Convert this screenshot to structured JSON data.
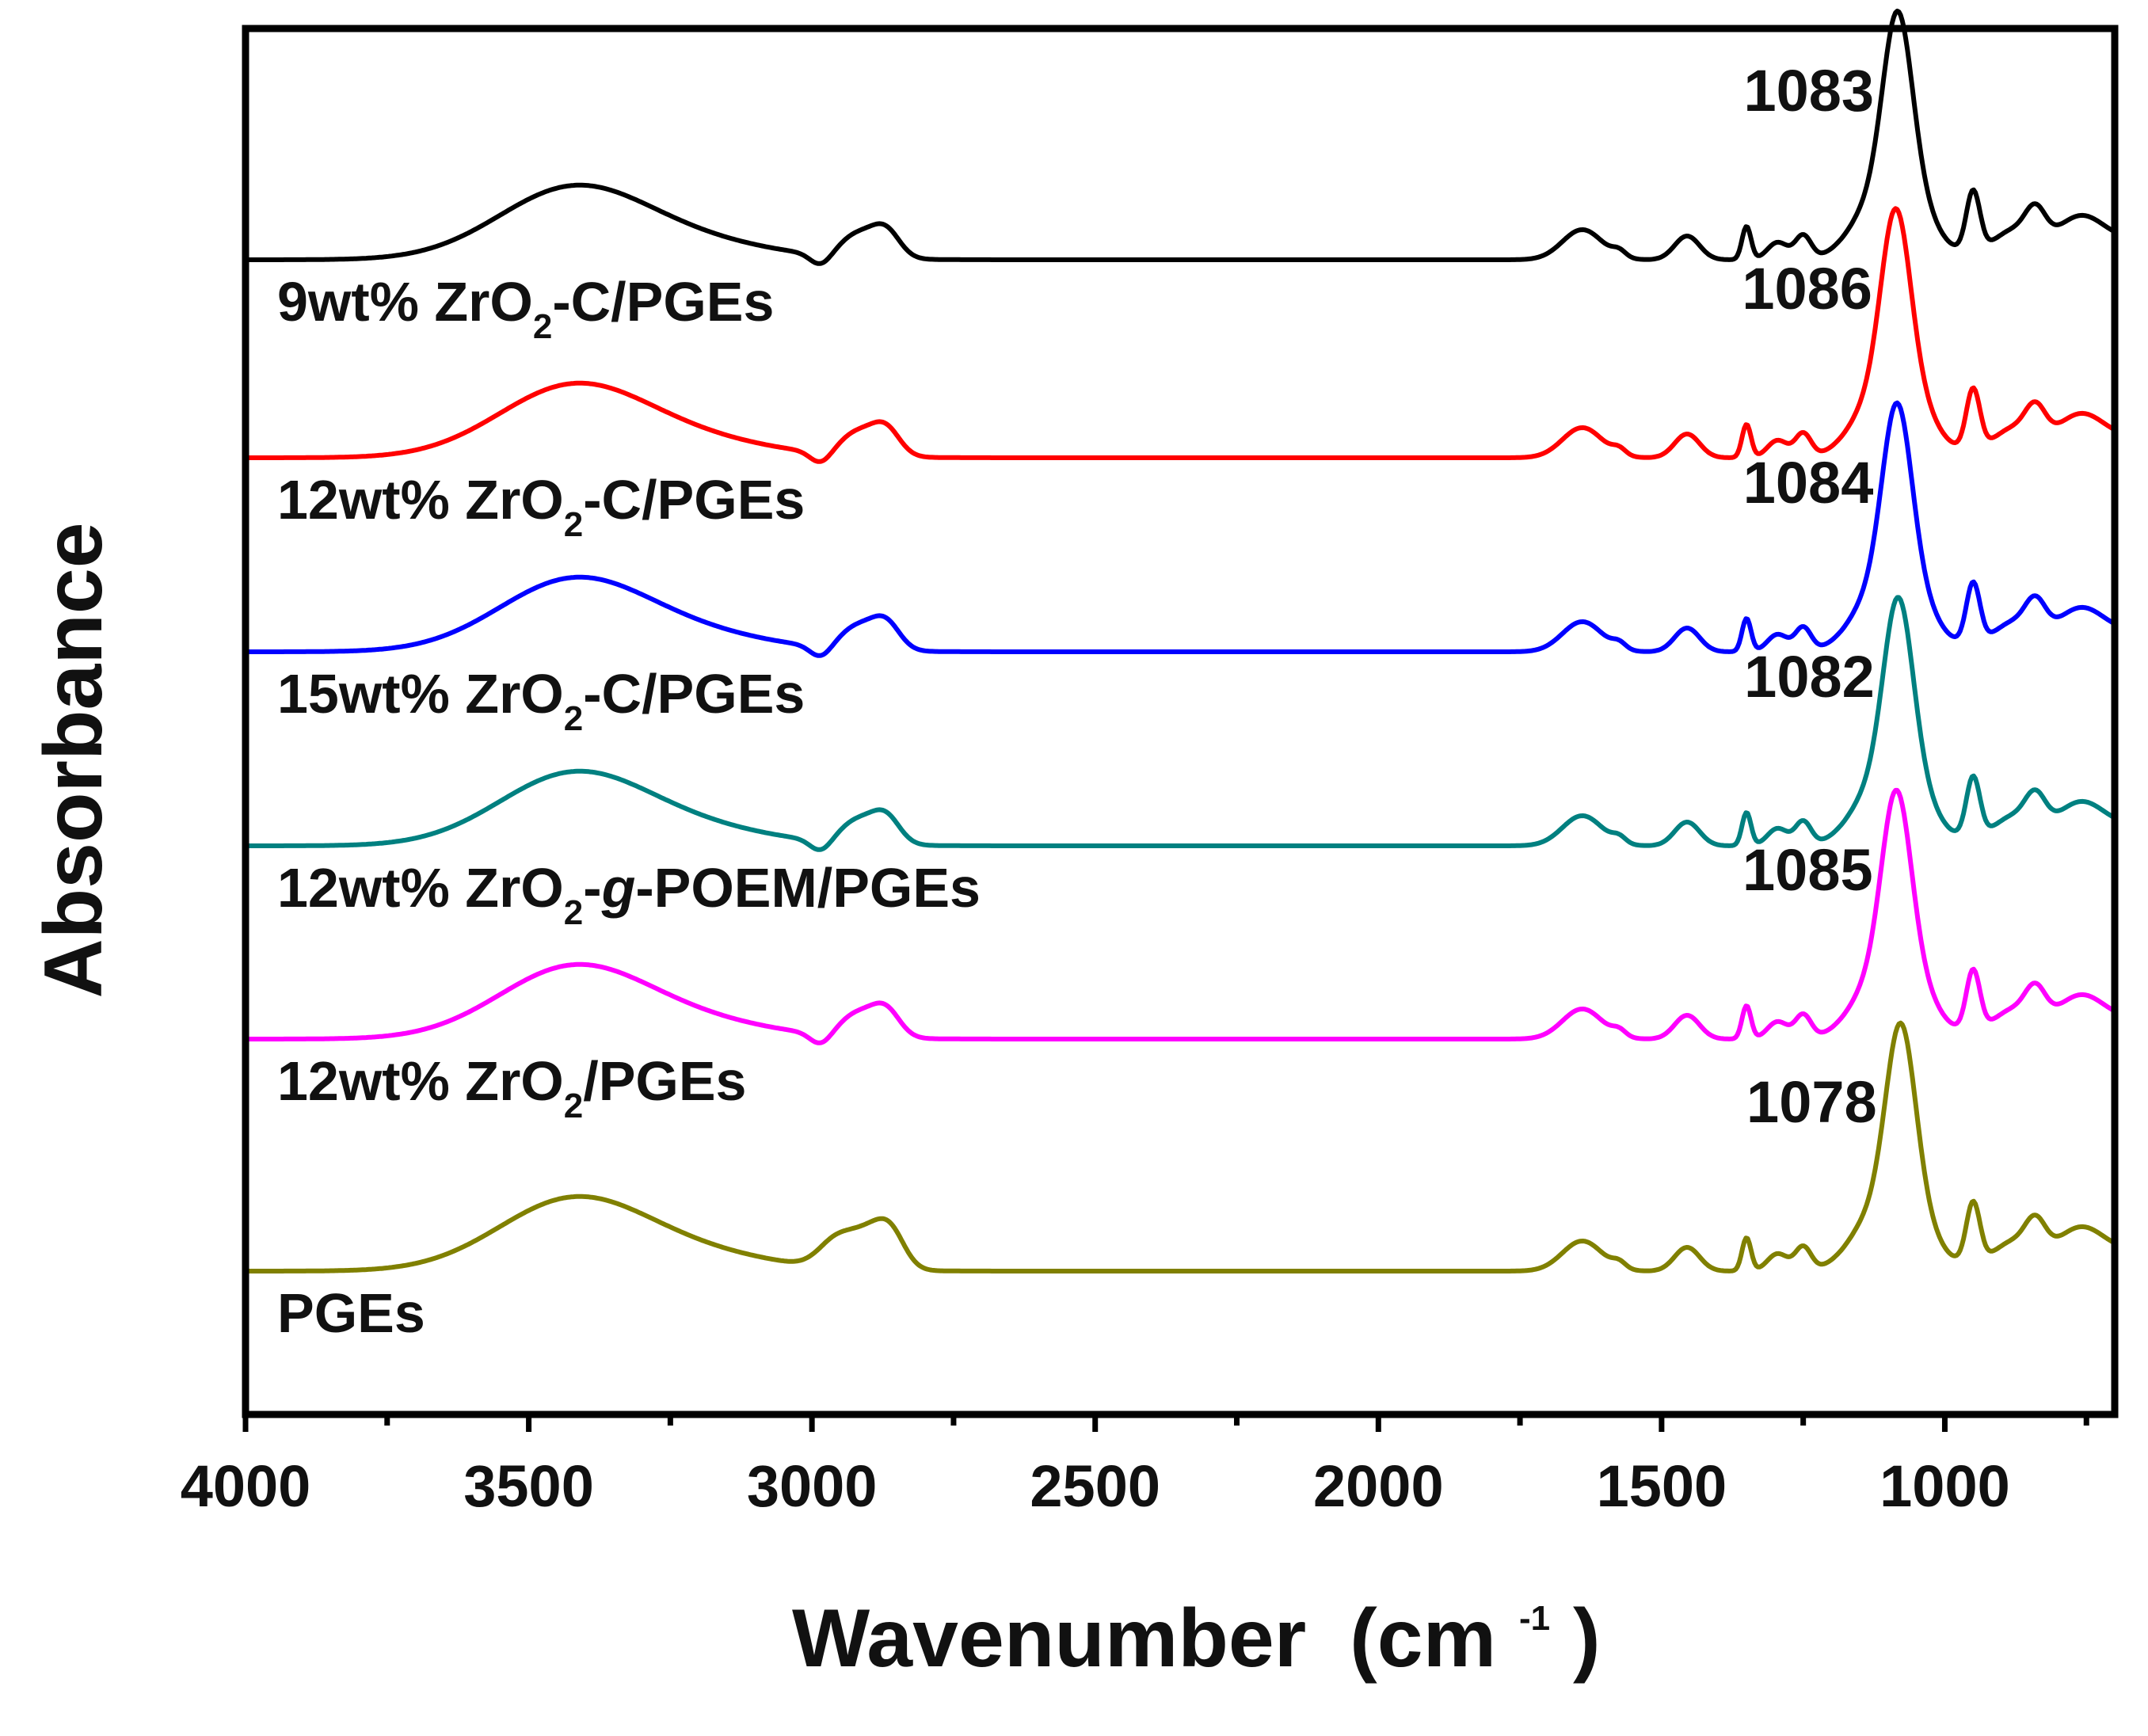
{
  "chart_data": {
    "type": "line",
    "title": "",
    "xlabel": "Wavenumber",
    "xlabel_unit": "(cm",
    "xlabel_unit_exp": "-1",
    "xlabel_unit_close": ")",
    "ylabel": "Absorbance",
    "xlim": [
      4000,
      700
    ],
    "x_reversed": true,
    "yticks_shown": false,
    "xticks": [
      4000,
      3500,
      3000,
      2500,
      2000,
      1500,
      1000
    ],
    "xtick_labels": [
      "4000",
      "3500",
      "3000",
      "2500",
      "2000",
      "1500",
      "1000"
    ],
    "series": [
      {
        "name": "9wt% ZrO2-C/PGEs",
        "label_parts": [
          "9wt% ZrO",
          "2",
          "-C/PGEs"
        ],
        "color": "#000000",
        "offset": 5,
        "peak_label": "1083",
        "peak_x": 1083,
        "profile": "composite"
      },
      {
        "name": "12wt% ZrO2-C/PGEs",
        "label_parts": [
          "12wt% ZrO",
          "2",
          "-C/PGEs"
        ],
        "color": "#ff0000",
        "offset": 4,
        "peak_label": "1086",
        "peak_x": 1086,
        "profile": "composite"
      },
      {
        "name": "15wt% ZrO2-C/PGEs",
        "label_parts": [
          "15wt% ZrO",
          "2",
          "-C/PGEs"
        ],
        "color": "#0000ff",
        "offset": 3,
        "peak_label": "1084",
        "peak_x": 1084,
        "profile": "composite"
      },
      {
        "name": "12wt% ZrO2-g-POEM/PGEs",
        "label_parts": [
          "12wt% ZrO",
          "2",
          "-",
          "g",
          "-POEM/PGEs"
        ],
        "color": "#008080",
        "offset": 2,
        "peak_label": "1082",
        "peak_x": 1082,
        "profile": "composite"
      },
      {
        "name": "12wt% ZrO2/PGEs",
        "label_parts": [
          "12wt% ZrO",
          "2",
          "/PGEs"
        ],
        "color": "#ff00ff",
        "offset": 1,
        "peak_label": "1085",
        "peak_x": 1085,
        "profile": "composite"
      },
      {
        "name": "PGEs",
        "label_parts": [
          "PGEs"
        ],
        "color": "#808000",
        "offset": 0,
        "peak_label": "1078",
        "peak_x": 1078,
        "profile": "pure"
      }
    ]
  }
}
